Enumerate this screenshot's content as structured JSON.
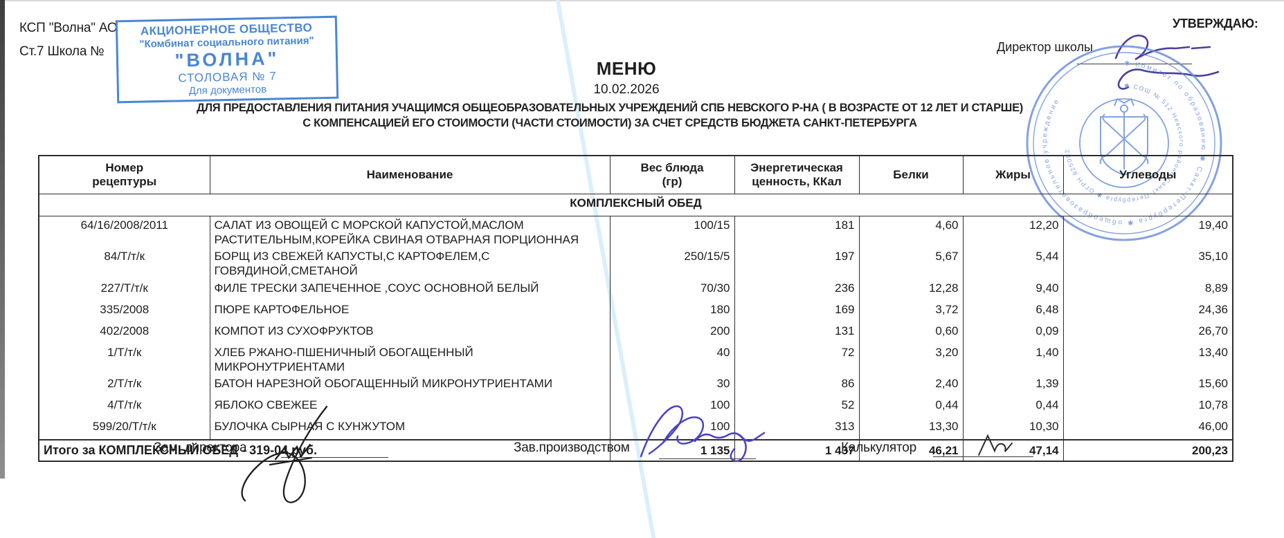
{
  "page": {
    "org_line1": "КСП \"Волна\" АО",
    "org_line2": "Ст.7 Школа №",
    "approve_label": "УТВЕРЖДАЮ:",
    "director_label": "Директор школы",
    "title": "МЕНЮ",
    "date": "10.02.2026",
    "subtitle1": "ДЛЯ ПРЕДОСТАВЛЕНИЯ ПИТАНИЯ УЧАЩИМСЯ ОБЩЕОБРАЗОВАТЕЛЬНЫХ УЧРЕЖДЕНИЙ СПБ НЕВСКОГО Р-НА ( В ВОЗРАСТЕ ОТ 12 ЛЕТ И СТАРШЕ)",
    "subtitle2": "С КОМПЕНСАЦИЕЙ ЕГО СТОИМОСТИ (ЧАСТИ СТОИМОСТИ) ЗА СЧЕТ СРЕДСТВ БЮДЖЕТА САНКТ-ПЕТЕРБУРГА"
  },
  "rect_stamp": {
    "line1": "АКЦИОНЕРНОЕ ОБЩЕСТВО",
    "line2": "\"Комбинат социального питания\"",
    "line3": "\"ВОЛНА\"",
    "line4": "СТОЛОВАЯ № 7",
    "line5": "Для документов",
    "color": "#4a86d4"
  },
  "round_stamp": {
    "ring_text_outer": "✱ Комитет по образованию ✱ Санкт-Петербурга ✱ общеобразовательное учреждение",
    "ring_text_inner": "✱ СОШ № 512 Невского района Санкт-Петербурга ✱ ОГРН 825002",
    "emblem": "coat-of-arms",
    "color": "#6a8ed8"
  },
  "table": {
    "columns": [
      "Номер\nрецептуры",
      "Наименование",
      "Вес блюда\n(гр)",
      "Энергетическая\nценность, ККал",
      "Белки",
      "Жиры",
      "Углеводы"
    ],
    "section": "КОМПЛЕКСНЫЙ ОБЕД",
    "rows": [
      {
        "recipe": "64/16/2008/2011",
        "name": "САЛАТ ИЗ ОВОЩЕЙ С МОРСКОЙ КАПУСТОЙ,МАСЛОМ РАСТИТЕЛЬНЫМ,КОРЕЙКА СВИНАЯ ОТВАРНАЯ ПОРЦИОННАЯ",
        "weight": "100/15",
        "kcal": "181",
        "protein": "4,60",
        "fat": "12,20",
        "carbs": "19,40"
      },
      {
        "recipe": "84/Т/т/к",
        "name": "БОРЩ ИЗ СВЕЖЕЙ КАПУСТЫ,С КАРТОФЕЛЕМ,С ГОВЯДИНОЙ,СМЕТАНОЙ",
        "weight": "250/15/5",
        "kcal": "197",
        "protein": "5,67",
        "fat": "5,44",
        "carbs": "35,10"
      },
      {
        "recipe": "227/Т/т/к",
        "name": "ФИЛЕ ТРЕСКИ ЗАПЕЧЕННОЕ ,СОУС ОСНОВНОЙ БЕЛЫЙ",
        "weight": "70/30",
        "kcal": "236",
        "protein": "12,28",
        "fat": "9,40",
        "carbs": "8,89"
      },
      {
        "recipe": "335/2008",
        "name": "ПЮРЕ КАРТОФЕЛЬНОЕ",
        "weight": "180",
        "kcal": "169",
        "protein": "3,72",
        "fat": "6,48",
        "carbs": "24,36"
      },
      {
        "recipe": "402/2008",
        "name": "КОМПОТ ИЗ СУХОФРУКТОВ",
        "weight": "200",
        "kcal": "131",
        "protein": "0,60",
        "fat": "0,09",
        "carbs": "26,70"
      },
      {
        "recipe": "1/Т/т/к",
        "name": "ХЛЕБ РЖАНО-ПШЕНИЧНЫЙ ОБОГАЩЕННЫЙ МИКРОНУТРИЕНТАМИ",
        "weight": "40",
        "kcal": "72",
        "protein": "3,20",
        "fat": "1,40",
        "carbs": "13,40"
      },
      {
        "recipe": "2/Т/т/к",
        "name": "БАТОН НАРЕЗНОЙ ОБОГАЩЕННЫЙ МИКРОНУТРИЕНТАМИ",
        "weight": "30",
        "kcal": "86",
        "protein": "2,40",
        "fat": "1,39",
        "carbs": "15,60"
      },
      {
        "recipe": "4/Т/т/к",
        "name": "ЯБЛОКО СВЕЖЕЕ",
        "weight": "100",
        "kcal": "52",
        "protein": "0,44",
        "fat": "0,44",
        "carbs": "10,78"
      },
      {
        "recipe": "599/20/Т/т/к",
        "name": "БУЛОЧКА СЫРНАЯ С КУНЖУТОМ",
        "weight": "100",
        "kcal": "313",
        "protein": "13,30",
        "fat": "10,30",
        "carbs": "46,00"
      }
    ],
    "total_label": "Итого за КОМПЛЕКСНЫЙ ОБЕД - 319-04 руб.",
    "totals": {
      "weight": "1 135",
      "kcal": "1 437",
      "protein": "46,21",
      "fat": "47,14",
      "carbs": "200,23"
    }
  },
  "signatures": {
    "sig1_label": "Зам. директора",
    "sig2_label": "Зав.производством",
    "sig3_label": "Калькулятор"
  }
}
